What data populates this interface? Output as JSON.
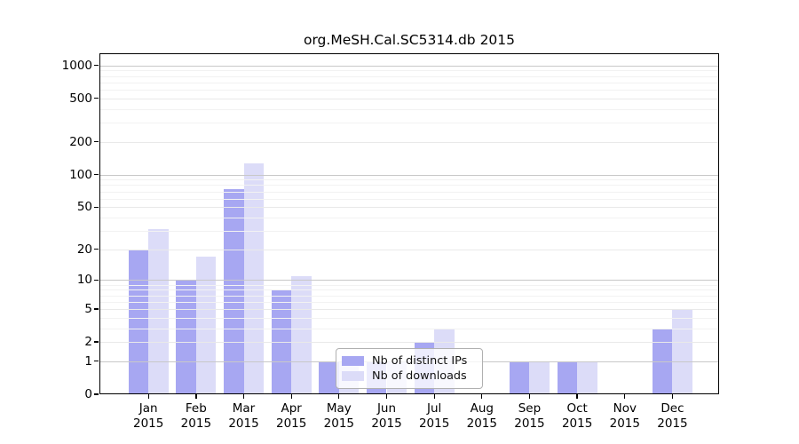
{
  "figure": {
    "background": "#ffffff"
  },
  "chart_data": {
    "type": "bar",
    "title": "org.MeSH.Cal.SC5314.db 2015",
    "categories": [
      "Jan",
      "Feb",
      "Mar",
      "Apr",
      "May",
      "Jun",
      "Jul",
      "Aug",
      "Sep",
      "Oct",
      "Nov",
      "Dec"
    ],
    "x_year": "2015",
    "series": [
      {
        "name": "Nb of distinct IPs",
        "color": "#a7a7f2",
        "values": [
          20,
          10,
          74,
          8,
          1,
          1,
          2,
          0,
          1,
          1,
          0,
          3
        ]
      },
      {
        "name": "Nb of downloads",
        "color": "#dcdcf8",
        "values": [
          31,
          17,
          128,
          11,
          1,
          1,
          3,
          0,
          1,
          1,
          0,
          5
        ]
      }
    ],
    "y_scale": "log1p",
    "y_ticks": [
      0,
      1,
      2,
      5,
      10,
      20,
      50,
      100,
      200,
      500,
      1000
    ],
    "ylim": [
      0,
      1290
    ],
    "xlabel": "",
    "ylabel": "",
    "grid": true,
    "legend_position": "lower-center-inside",
    "axis_color": "#000000",
    "major_grid_color": "#c8c8c8",
    "mid_grid_color": "#e9e9e9",
    "minor_grid_color": "#f2f2f2"
  }
}
